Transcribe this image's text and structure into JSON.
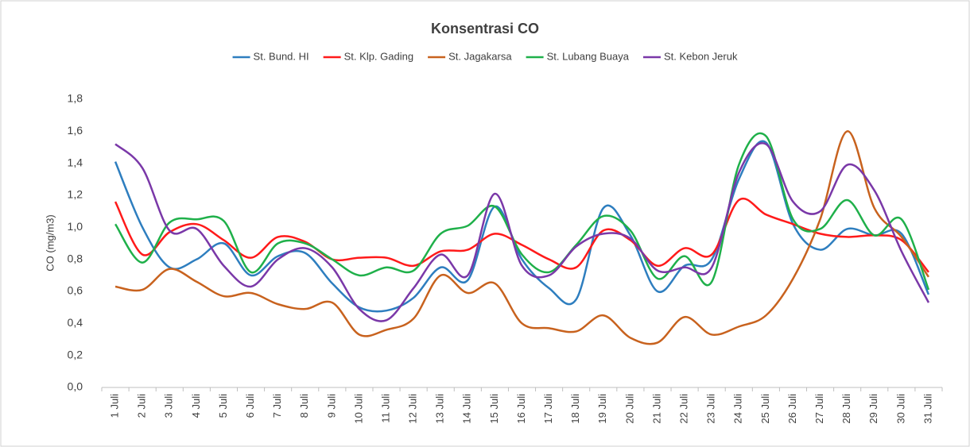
{
  "chart_data": {
    "type": "line",
    "title": "Konsentrasi CO",
    "y_label": "CO (mg/m3)",
    "categories": [
      "1 Juli",
      "2 Juli",
      "3 Juli",
      "4 Juli",
      "5 Juli",
      "6 Juli",
      "7 Juli",
      "8 Juli",
      "9 Juli",
      "10 Juli",
      "11 Juli",
      "12 Juli",
      "13 Juli",
      "14 Juli",
      "15 Juli",
      "16 Juli",
      "17 Juli",
      "18 Juli",
      "19 Juli",
      "20 Juli",
      "21 Juli",
      "22 Juli",
      "23 Juli",
      "24 Juli",
      "25 Juli",
      "26 Juli",
      "27 Juli",
      "28 Juli",
      "29 Juli",
      "30 Juli",
      "31 Juli"
    ],
    "series": [
      {
        "name": "St. Bund. HI",
        "color": "#2e7ebf",
        "values": [
          1.41,
          1.0,
          0.75,
          0.8,
          0.9,
          0.7,
          0.82,
          0.84,
          0.65,
          0.5,
          0.48,
          0.56,
          0.75,
          0.67,
          1.13,
          0.8,
          0.62,
          0.55,
          1.12,
          0.95,
          0.6,
          0.76,
          0.8,
          1.3,
          1.53,
          1.02,
          0.86,
          0.99,
          0.95,
          0.96,
          0.58
        ]
      },
      {
        "name": "St. Klp. Gading",
        "color": "#ff1a1a",
        "values": [
          1.16,
          0.83,
          0.97,
          1.02,
          0.92,
          0.81,
          0.94,
          0.91,
          0.8,
          0.81,
          0.81,
          0.76,
          0.85,
          0.86,
          0.96,
          0.89,
          0.8,
          0.75,
          0.98,
          0.92,
          0.76,
          0.87,
          0.83,
          1.17,
          1.08,
          1.02,
          0.96,
          0.94,
          0.95,
          0.92,
          0.72
        ]
      },
      {
        "name": "St. Jagakarsa",
        "color": "#c8621e",
        "values": [
          0.63,
          0.61,
          0.74,
          0.66,
          0.57,
          0.59,
          0.52,
          0.49,
          0.53,
          0.33,
          0.36,
          0.43,
          0.7,
          0.59,
          0.65,
          0.4,
          0.37,
          0.35,
          0.45,
          0.31,
          0.28,
          0.44,
          0.33,
          0.38,
          0.45,
          0.68,
          1.05,
          1.6,
          1.12,
          0.94,
          0.69
        ]
      },
      {
        "name": "St. Lubang Buaya",
        "color": "#1fb04a",
        "values": [
          1.02,
          0.78,
          1.03,
          1.05,
          1.04,
          0.72,
          0.9,
          0.9,
          0.8,
          0.7,
          0.75,
          0.73,
          0.96,
          1.01,
          1.13,
          0.83,
          0.72,
          0.89,
          1.07,
          0.98,
          0.68,
          0.82,
          0.66,
          1.39,
          1.57,
          1.05,
          0.99,
          1.17,
          0.95,
          1.05,
          0.61
        ]
      },
      {
        "name": "St. Kebon Jeruk",
        "color": "#7a38a8",
        "values": [
          1.52,
          1.37,
          0.98,
          0.99,
          0.76,
          0.63,
          0.8,
          0.87,
          0.75,
          0.49,
          0.42,
          0.62,
          0.83,
          0.7,
          1.21,
          0.76,
          0.7,
          0.88,
          0.96,
          0.93,
          0.73,
          0.75,
          0.75,
          1.34,
          1.52,
          1.16,
          1.1,
          1.39,
          1.23,
          0.85,
          0.53
        ]
      }
    ],
    "ylim": [
      0,
      1.8
    ],
    "yticks": [
      {
        "value": 0,
        "label": "0,0"
      },
      {
        "value": 0.2,
        "label": "0,2"
      },
      {
        "value": 0.4,
        "label": "0,4"
      },
      {
        "value": 0.6,
        "label": "0,6"
      },
      {
        "value": 0.8,
        "label": "0,8"
      },
      {
        "value": 1.0,
        "label": "1,0"
      },
      {
        "value": 1.2,
        "label": "1,2"
      },
      {
        "value": 1.4,
        "label": "1,4"
      },
      {
        "value": 1.6,
        "label": "1,6"
      },
      {
        "value": 1.8,
        "label": "1,8"
      }
    ],
    "grid": false,
    "legend": "top"
  }
}
